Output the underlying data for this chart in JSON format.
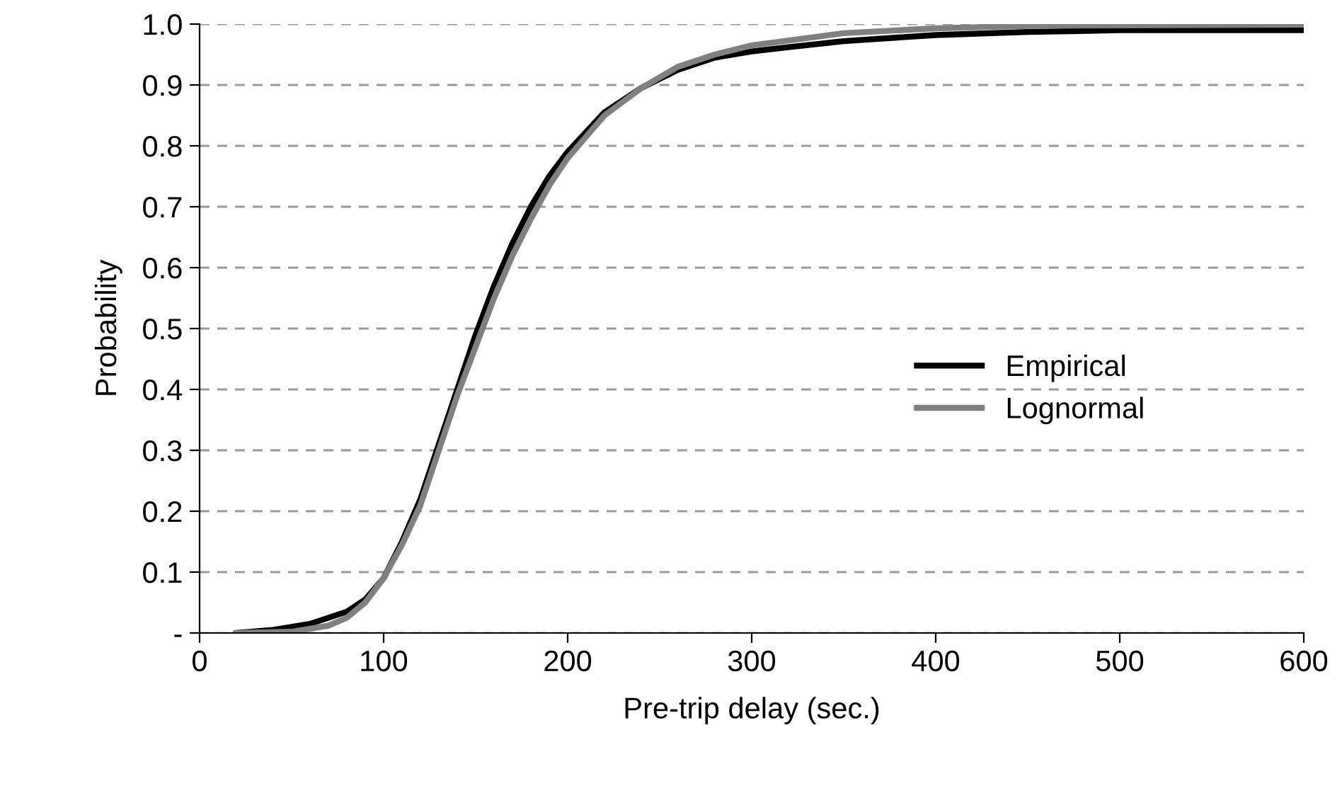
{
  "chart_data": {
    "type": "line",
    "xlabel": "Pre-trip delay (sec.)",
    "ylabel": "Probability",
    "xlim": [
      0,
      600
    ],
    "xticks": [
      0,
      100,
      200,
      300,
      400,
      500,
      600
    ],
    "ylim": [
      0,
      1.0
    ],
    "yticks": [
      {
        "value": 0,
        "label": "-"
      },
      {
        "value": 0.1,
        "label": "0.1"
      },
      {
        "value": 0.2,
        "label": "0.2"
      },
      {
        "value": 0.3,
        "label": "0.3"
      },
      {
        "value": 0.4,
        "label": "0.4"
      },
      {
        "value": 0.5,
        "label": "0.5"
      },
      {
        "value": 0.6,
        "label": "0.6"
      },
      {
        "value": 0.7,
        "label": "0.7"
      },
      {
        "value": 0.8,
        "label": "0.8"
      },
      {
        "value": 0.9,
        "label": "0.9"
      },
      {
        "value": 1.0,
        "label": "1.0"
      }
    ],
    "grid": "y",
    "legend": "right",
    "marker": "none",
    "line_style": "solid",
    "series": [
      {
        "name": "Empirical",
        "color": "#000000",
        "x": [
          20,
          40,
          60,
          80,
          90,
          100,
          110,
          120,
          130,
          140,
          150,
          160,
          170,
          180,
          190,
          200,
          220,
          240,
          260,
          280,
          300,
          320,
          350,
          400,
          450,
          500,
          600
        ],
        "values": [
          0,
          0.005,
          0.015,
          0.035,
          0.055,
          0.09,
          0.15,
          0.22,
          0.31,
          0.4,
          0.49,
          0.57,
          0.64,
          0.7,
          0.75,
          0.79,
          0.855,
          0.895,
          0.925,
          0.945,
          0.955,
          0.962,
          0.972,
          0.982,
          0.987,
          0.99,
          0.99
        ]
      },
      {
        "name": "Lognormal",
        "color": "#808080",
        "x": [
          20,
          50,
          70,
          80,
          90,
          100,
          110,
          120,
          130,
          140,
          150,
          160,
          170,
          180,
          190,
          200,
          220,
          240,
          260,
          280,
          300,
          350,
          400,
          450,
          500,
          600
        ],
        "values": [
          0,
          0.002,
          0.012,
          0.025,
          0.05,
          0.09,
          0.145,
          0.21,
          0.3,
          0.39,
          0.47,
          0.55,
          0.62,
          0.68,
          0.735,
          0.78,
          0.85,
          0.895,
          0.93,
          0.95,
          0.965,
          0.985,
          0.993,
          0.997,
          0.998,
          0.999
        ]
      }
    ]
  }
}
